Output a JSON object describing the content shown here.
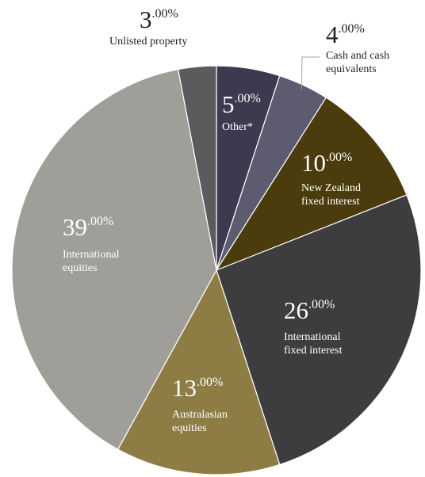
{
  "chart_data": {
    "type": "pie",
    "slices": [
      {
        "label_lines": [
          "Other*"
        ],
        "value_main": "5",
        "value_suffix": ".00%",
        "value": 5,
        "color": "#3c3a4f"
      },
      {
        "label_lines": [
          "Cash and cash",
          "equivalents"
        ],
        "value_main": "4",
        "value_suffix": ".00%",
        "value": 4,
        "color": "#5c5b70"
      },
      {
        "label_lines": [
          "New Zealand",
          "fixed interest"
        ],
        "value_main": "10",
        "value_suffix": ".00%",
        "value": 10,
        "color": "#4a3c0d"
      },
      {
        "label_lines": [
          "International",
          "fixed interest"
        ],
        "value_main": "26",
        "value_suffix": ".00%",
        "value": 26,
        "color": "#3d3d3f"
      },
      {
        "label_lines": [
          "Australasian",
          "equities"
        ],
        "value_main": "13",
        "value_suffix": ".00%",
        "value": 13,
        "color": "#8d7d45"
      },
      {
        "label_lines": [
          "International",
          "equities"
        ],
        "value_main": "39",
        "value_suffix": ".00%",
        "value": 39,
        "color": "#a09e98"
      },
      {
        "label_lines": [
          "Unlisted property"
        ],
        "value_main": "3",
        "value_suffix": ".00%",
        "value": 3,
        "color": "#5b5b5d"
      }
    ],
    "start_angle": "12 o'clock",
    "direction": "clockwise",
    "legend": "none"
  }
}
